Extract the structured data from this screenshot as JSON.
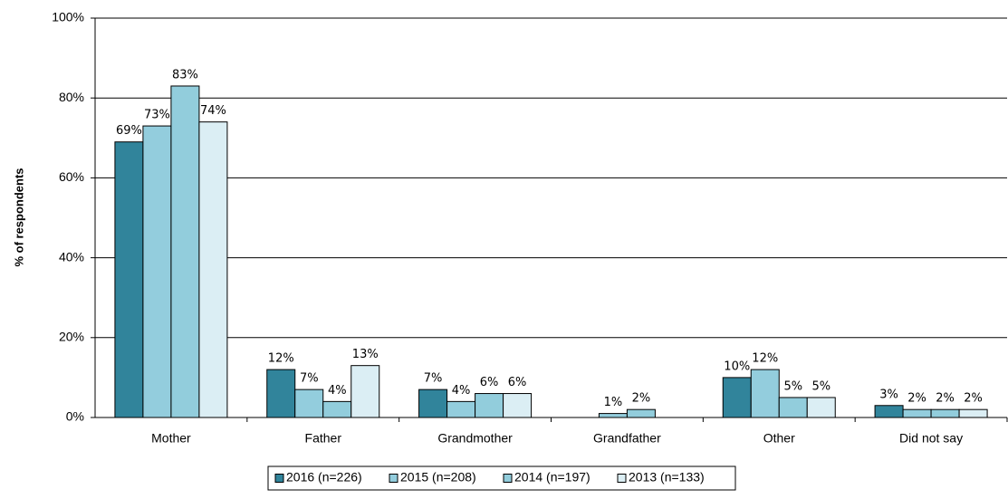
{
  "chart_data": {
    "type": "bar",
    "y_label": "% of respondents",
    "categories": [
      "Mother",
      "Father",
      "Grandmother",
      "Grandfather",
      "Other",
      "Did not say"
    ],
    "series": [
      {
        "name": "2016 (n=226)",
        "color": "#31849b",
        "values": [
          69,
          12,
          7,
          null,
          10,
          3
        ],
        "value_labels": [
          "69%",
          "12%",
          "7%",
          null,
          "10%",
          "3%"
        ]
      },
      {
        "name": "2015 (n=208)",
        "color": "#93cddd",
        "values": [
          73,
          7,
          4,
          1,
          12,
          2
        ],
        "value_labels": [
          "73%",
          "7%",
          "4%",
          "1%",
          "12%",
          "2%"
        ]
      },
      {
        "name": "2014 (n=197)",
        "color": "#92cddc",
        "values": [
          83,
          4,
          6,
          2,
          5,
          2
        ],
        "value_labels": [
          "83%",
          "4%",
          "6%",
          "2%",
          "5%",
          "2%"
        ]
      },
      {
        "name": "2013 (n=133)",
        "color": "#dbeef4",
        "values": [
          74,
          13,
          6,
          null,
          5,
          2
        ],
        "value_labels": [
          "74%",
          "13%",
          "6%",
          null,
          "5%",
          "2%"
        ]
      }
    ],
    "ylim": [
      0,
      100
    ],
    "yticks": [
      {
        "value": 0,
        "label": "0%"
      },
      {
        "value": 20,
        "label": "20%"
      },
      {
        "value": 40,
        "label": "40%"
      },
      {
        "value": 60,
        "label": "60%"
      },
      {
        "value": 80,
        "label": "80%"
      },
      {
        "value": 100,
        "label": "100%"
      }
    ],
    "grid": true,
    "legend": "bottom"
  }
}
